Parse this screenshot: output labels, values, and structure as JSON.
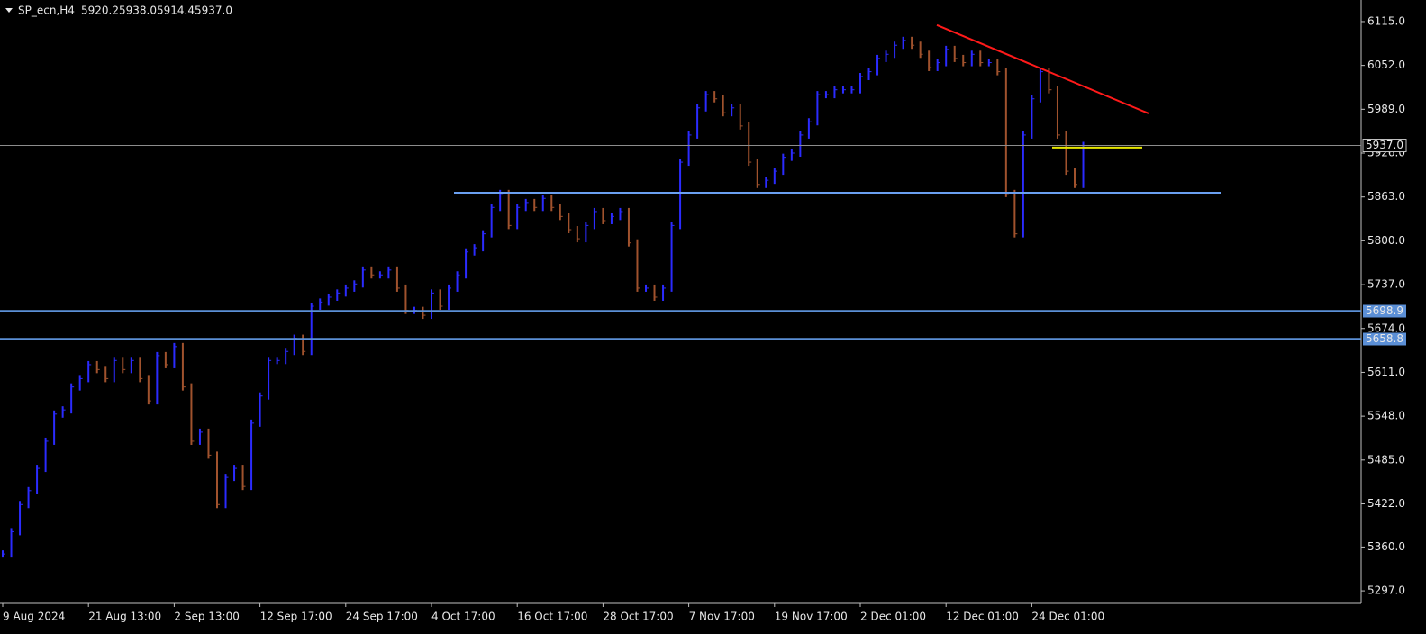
{
  "chart_data": {
    "type": "bar",
    "title": "SP_ecn,H4",
    "header_ohlc": [
      {
        "value": 5920.2,
        "label": "5920.2"
      },
      {
        "value": 5938,
        "label": "5938.0"
      },
      {
        "value": 5914.4,
        "label": "5914.4"
      },
      {
        "value": 5937,
        "label": "5937.0"
      }
    ],
    "categories": [
      "9 Aug 2024",
      null,
      null,
      null,
      null,
      null,
      null,
      null,
      null,
      null,
      "21 Aug 13:00",
      null,
      null,
      null,
      null,
      null,
      null,
      null,
      null,
      null,
      "2 Sep 13:00",
      null,
      null,
      null,
      null,
      null,
      null,
      null,
      null,
      null,
      "12 Sep 17:00",
      null,
      null,
      null,
      null,
      null,
      null,
      null,
      null,
      null,
      "24 Sep 17:00",
      null,
      null,
      null,
      null,
      null,
      null,
      null,
      null,
      null,
      "4 Oct 17:00",
      null,
      null,
      null,
      null,
      null,
      null,
      null,
      null,
      null,
      "16 Oct 17:00",
      null,
      null,
      null,
      null,
      null,
      null,
      null,
      null,
      null,
      "28 Oct 17:00",
      null,
      null,
      null,
      null,
      null,
      null,
      null,
      null,
      null,
      "7 Nov 17:00",
      null,
      null,
      null,
      null,
      null,
      null,
      null,
      null,
      null,
      "19 Nov 17:00",
      null,
      null,
      null,
      null,
      null,
      null,
      null,
      null,
      null,
      "2 Dec 01:00",
      null,
      null,
      null,
      null,
      null,
      null,
      null,
      null,
      null,
      "12 Dec 01:00",
      null,
      null,
      null,
      null,
      null,
      null,
      null,
      null,
      null,
      "24 Dec 01:00",
      null,
      null,
      null,
      null,
      null,
      null
    ],
    "values": [
      5350,
      5382,
      5421,
      5441,
      5473,
      5512,
      5551,
      5557,
      5590,
      5602,
      5622,
      5615,
      5602,
      5628,
      5615,
      5628,
      5602,
      5570,
      5635,
      5622,
      5648,
      5590,
      5512,
      5525,
      5492,
      5421,
      5460,
      5473,
      5447,
      5538,
      5577,
      5628,
      5628,
      5641,
      5660,
      5641,
      5706,
      5712,
      5719,
      5725,
      5732,
      5738,
      5758,
      5751,
      5751,
      5758,
      5732,
      5700,
      5700,
      5693,
      5725,
      5706,
      5732,
      5751,
      5784,
      5790,
      5810,
      5848,
      5868,
      5822,
      5848,
      5855,
      5848,
      5861,
      5848,
      5835,
      5816,
      5803,
      5822,
      5842,
      5829,
      5835,
      5842,
      5797,
      5732,
      5732,
      5719,
      5732,
      5822,
      5913,
      5952,
      5991,
      6010,
      6004,
      5984,
      5991,
      5965,
      5913,
      5881,
      5887,
      5900,
      5920,
      5926,
      5952,
      5971,
      6010,
      6010,
      6017,
      6017,
      6017,
      6036,
      6043,
      6062,
      6068,
      6081,
      6088,
      6081,
      6068,
      6049,
      6056,
      6075,
      6062,
      6056,
      6068,
      6056,
      6056,
      6043,
      5868,
      5810,
      5952,
      6004,
      6043,
      6017,
      5952,
      5900,
      5881,
      5937
    ],
    "up_color": "#2b2bff",
    "down_color": "#a0522d",
    "ylim": [
      5279,
      6146
    ],
    "yticks": [
      {
        "value": 6115,
        "label": "6115.0"
      },
      {
        "value": 6052,
        "label": "6052.0"
      },
      {
        "value": 5989,
        "label": "5989.0"
      },
      {
        "value": 5926,
        "label": "5926.0"
      },
      {
        "value": 5863,
        "label": "5863.0"
      },
      {
        "value": 5800,
        "label": "5800.0"
      },
      {
        "value": 5737,
        "label": "5737.0"
      },
      {
        "value": 5674,
        "label": "5674.0"
      },
      {
        "value": 5611,
        "label": "5611.0"
      },
      {
        "value": 5548,
        "label": "5548.0"
      },
      {
        "value": 5485,
        "label": "5485.0"
      },
      {
        "value": 5422,
        "label": "5422.0"
      },
      {
        "value": 5360,
        "label": "5360.0"
      },
      {
        "value": 5297,
        "label": "5297.0"
      }
    ],
    "price_lines": [
      {
        "price": {
          "value": 5937,
          "label": "5937.0"
        },
        "color": "#8c8c8c"
      },
      {
        "price": {
          "value": 5698.9,
          "label": "5698.9"
        },
        "color": "#5b8fd6"
      },
      {
        "price": {
          "value": 5658.8,
          "label": "5658.8"
        },
        "color": "#5b8fd6"
      }
    ],
    "trend_lines": [
      {
        "from": 6110,
        "to": 5983,
        "color": "#ff1a1a"
      },
      {
        "from": 5934,
        "to": 5934,
        "color": "#e6e600"
      },
      {
        "from": 5869,
        "to": 5869,
        "color": "#6a9ff0"
      }
    ]
  }
}
